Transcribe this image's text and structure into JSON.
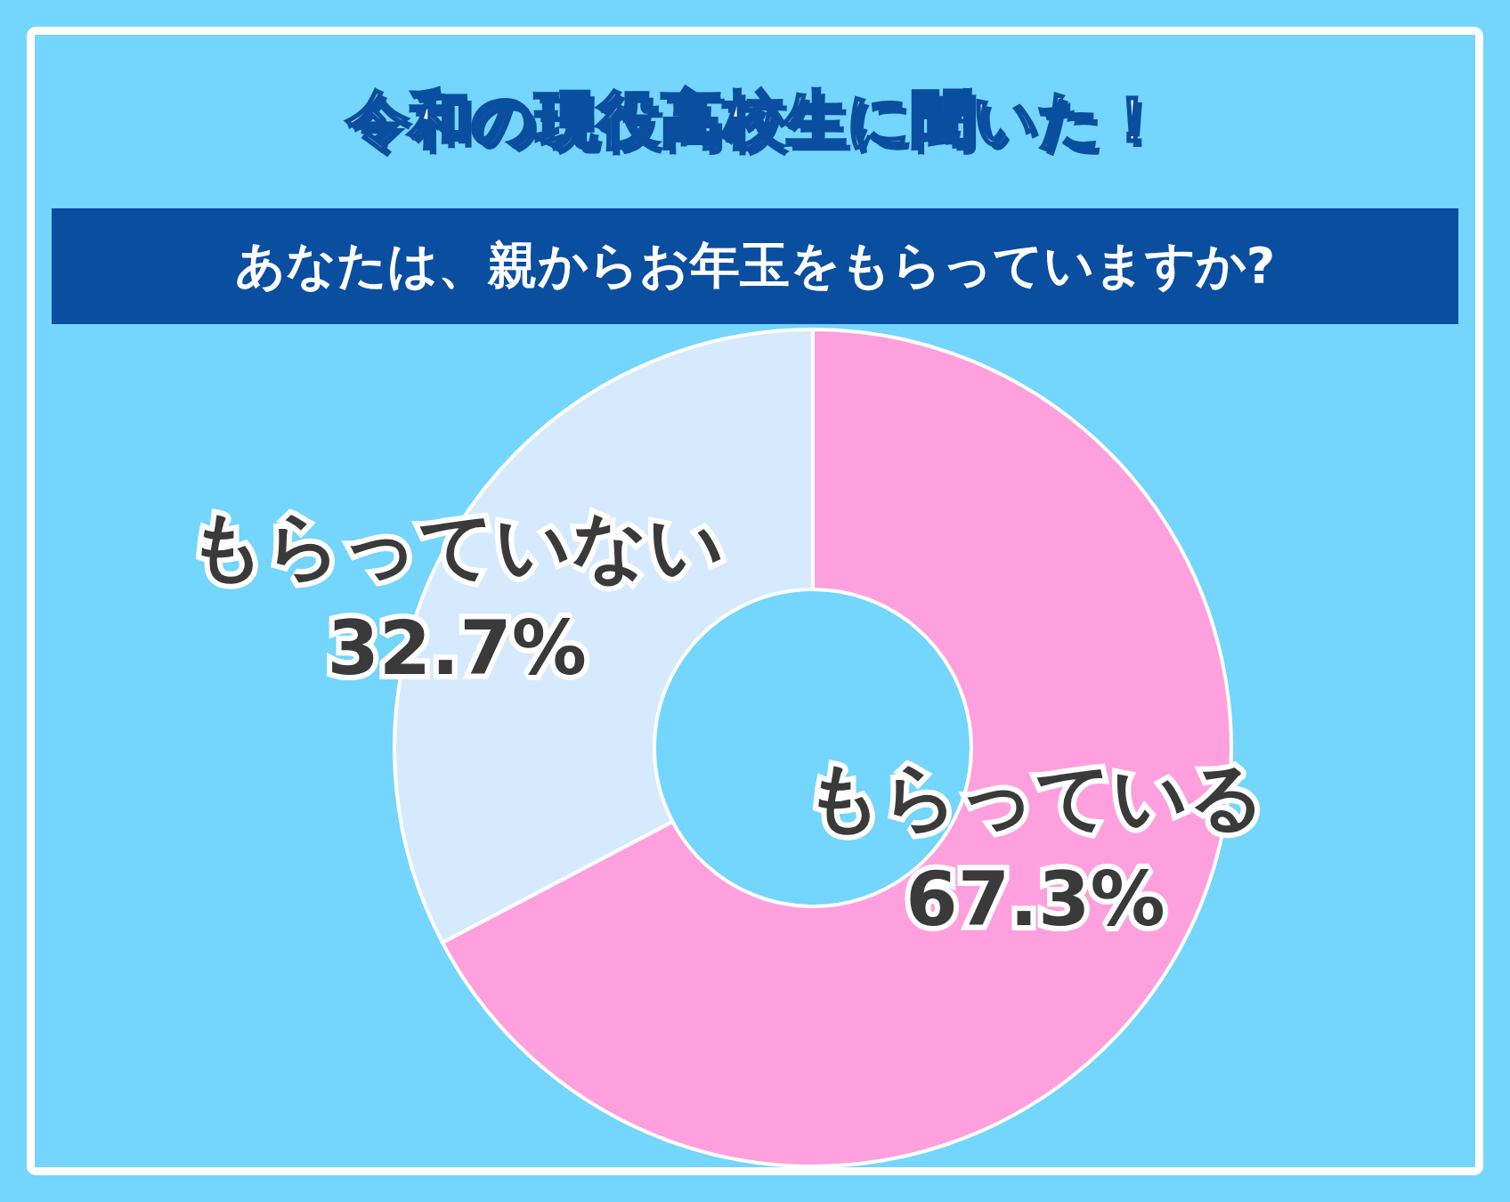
{
  "chart_data": {
    "type": "donut",
    "title": "令和の現役高校生に聞いた！",
    "subtitle": "あなたは、親からお年玉をもらっていますか?",
    "categories": [
      "もらっている",
      "もらっていない"
    ],
    "values": [
      67.3,
      32.7
    ],
    "colors": [
      "#ffa0de",
      "#d6eaff"
    ],
    "value_labels": [
      "67.3%",
      "32.7%"
    ],
    "legend": false
  }
}
